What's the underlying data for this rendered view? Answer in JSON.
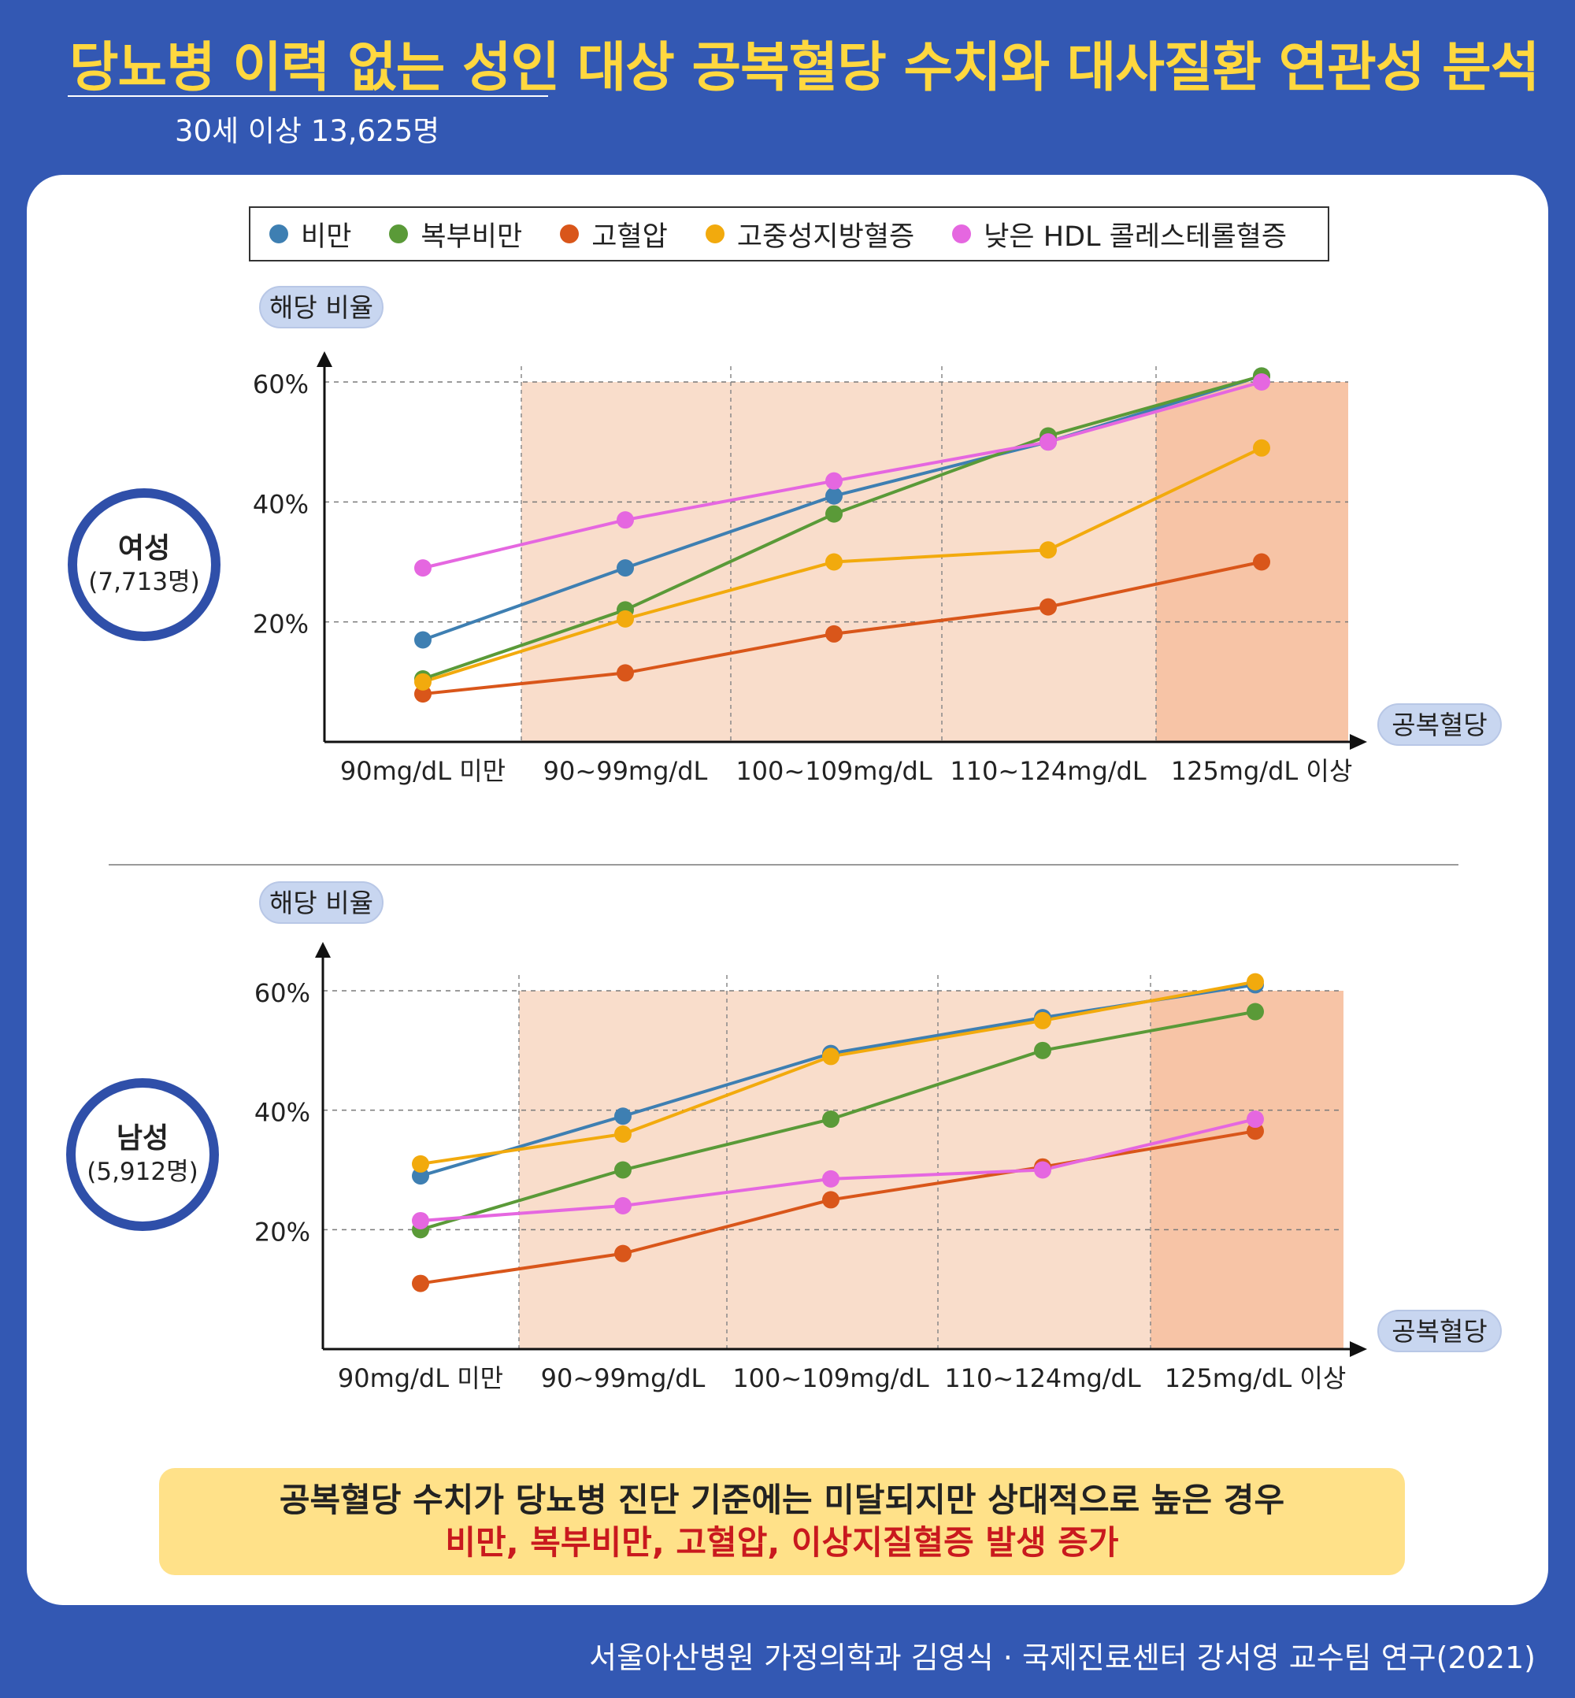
{
  "header": {
    "title": "당뇨병 이력 없는 성인 대상 공복혈당 수치와 대사질환 연관성 분석",
    "subtitle": "30세 이상 13,625명"
  },
  "legend": [
    {
      "label": "비만",
      "color": "#3e7fb2"
    },
    {
      "label": "복부비만",
      "color": "#5a9a38"
    },
    {
      "label": "고혈압",
      "color": "#d9561a"
    },
    {
      "label": "고중성지방혈증",
      "color": "#f2aa0d"
    },
    {
      "label": "낮은 HDL 콜레스테롤혈증",
      "color": "#e567e0"
    }
  ],
  "groups": [
    {
      "name": "여성",
      "count": "(7,713명)"
    },
    {
      "name": "남성",
      "count": "(5,912명)"
    }
  ],
  "chart_data": [
    {
      "type": "line",
      "group": "여성",
      "ylabel": "해당 비율",
      "xlabel": "공복혈당",
      "ylim": [
        0,
        60
      ],
      "yticks": [
        "20%",
        "40%",
        "60%"
      ],
      "categories": [
        "90mg/dL 미만",
        "90~99mg/dL",
        "100~109mg/dL",
        "110~124mg/dL",
        "125mg/dL 이상"
      ],
      "series": [
        {
          "name": "비만",
          "color": "#3e7fb2",
          "values": [
            17,
            29,
            41,
            50,
            61
          ]
        },
        {
          "name": "복부비만",
          "color": "#5a9a38",
          "values": [
            10.5,
            22,
            38,
            51,
            61
          ]
        },
        {
          "name": "고혈압",
          "color": "#d9561a",
          "values": [
            8,
            11.5,
            18,
            22.5,
            30
          ]
        },
        {
          "name": "고중성지방혈증",
          "color": "#f2aa0d",
          "values": [
            10,
            20.5,
            30,
            32,
            49
          ]
        },
        {
          "name": "낮은 HDL 콜레스테롤혈증",
          "color": "#e567e0",
          "values": [
            29,
            37,
            43.5,
            50,
            60
          ]
        }
      ],
      "grid": true,
      "shaded_ranges": "90~99mg/dL to 110~124mg/dL light, 125mg/dL 이상 darker"
    },
    {
      "type": "line",
      "group": "남성",
      "ylabel": "해당 비율",
      "xlabel": "공복혈당",
      "ylim": [
        0,
        60
      ],
      "yticks": [
        "20%",
        "40%",
        "60%"
      ],
      "categories": [
        "90mg/dL 미만",
        "90~99mg/dL",
        "100~109mg/dL",
        "110~124mg/dL",
        "125mg/dL 이상"
      ],
      "series": [
        {
          "name": "비만",
          "color": "#3e7fb2",
          "values": [
            29,
            39,
            49.5,
            55.5,
            61
          ]
        },
        {
          "name": "복부비만",
          "color": "#5a9a38",
          "values": [
            20,
            30,
            38.5,
            50,
            56.5
          ]
        },
        {
          "name": "고혈압",
          "color": "#d9561a",
          "values": [
            11,
            16,
            25,
            30.5,
            36.5
          ]
        },
        {
          "name": "고중성지방혈증",
          "color": "#f2aa0d",
          "values": [
            31,
            36,
            49,
            55,
            61.5
          ]
        },
        {
          "name": "낮은 HDL 콜레스테롤혈증",
          "color": "#e567e0",
          "values": [
            21.5,
            24,
            28.5,
            30,
            38.5
          ]
        }
      ],
      "grid": true,
      "shaded_ranges": "90~99mg/dL to 110~124mg/dL light, 125mg/dL 이상 darker"
    }
  ],
  "conclusion": {
    "line1": "공복혈당 수치가 당뇨병 진단 기준에는 미달되지만 상대적으로 높은 경우",
    "line2": "비만, 복부비만, 고혈압, 이상지질혈증 발생 증가"
  },
  "source": "서울아산병원 가정의학과 김영식 · 국제진료센터 강서영 교수팀 연구(2021)"
}
